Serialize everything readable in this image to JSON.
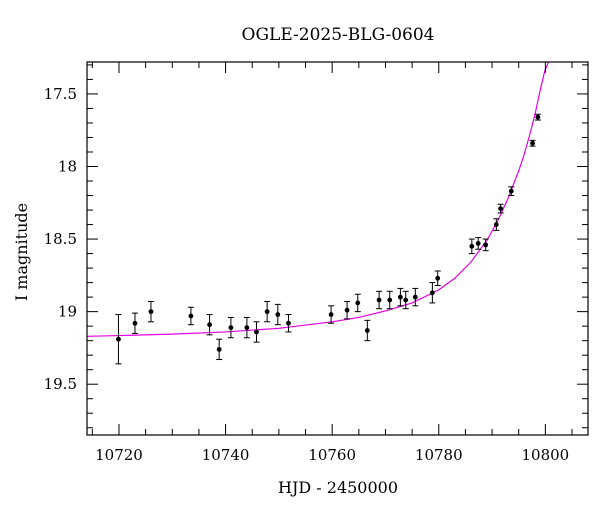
{
  "chart_data": {
    "type": "scatter",
    "title": "OGLE-2025-BLG-0604",
    "xlabel": "HJD - 2450000",
    "ylabel": "I magnitude",
    "xlim": [
      10714,
      10808
    ],
    "ylim": [
      19.85,
      17.28
    ],
    "y_inverted": true,
    "xticks": [
      10720,
      10740,
      10760,
      10780,
      10800
    ],
    "yticks": [
      17.5,
      18,
      18.5,
      19,
      19.5
    ],
    "ytick_labels": [
      "17.5",
      "18",
      "18.5",
      "19",
      "19.5"
    ],
    "grid": false,
    "legend": "none",
    "colors": {
      "points": "#000000",
      "model": "#e600e6"
    },
    "series": [
      {
        "type": "scatter_errorbar",
        "x": [
          10719.9,
          10723.0,
          10726.0,
          10733.5,
          10737.0,
          10738.8,
          10741.0,
          10744.0,
          10745.8,
          10747.8,
          10749.8,
          10751.8,
          10759.8,
          10762.8,
          10764.8,
          10766.6,
          10768.8,
          10770.8,
          10772.8,
          10773.8,
          10775.6,
          10778.8,
          10779.8,
          10786.2,
          10787.4,
          10788.8,
          10790.8,
          10791.6,
          10793.6,
          10797.6,
          10798.6
        ],
        "y": [
          19.19,
          19.08,
          19.0,
          19.03,
          19.09,
          19.26,
          19.11,
          19.11,
          19.14,
          19.0,
          19.02,
          19.08,
          19.02,
          18.99,
          18.94,
          19.13,
          18.92,
          18.92,
          18.9,
          18.92,
          18.9,
          18.87,
          18.77,
          18.55,
          18.53,
          18.54,
          18.4,
          18.29,
          18.17,
          17.84,
          17.66
        ],
        "err": [
          0.17,
          0.07,
          0.07,
          0.06,
          0.07,
          0.07,
          0.07,
          0.07,
          0.07,
          0.07,
          0.07,
          0.06,
          0.06,
          0.06,
          0.06,
          0.07,
          0.06,
          0.06,
          0.06,
          0.06,
          0.06,
          0.07,
          0.05,
          0.05,
          0.04,
          0.04,
          0.04,
          0.03,
          0.03,
          0.02,
          0.02
        ]
      },
      {
        "type": "line",
        "x": [
          10714,
          10720,
          10730,
          10740,
          10750,
          10760,
          10765,
          10770,
          10775,
          10780,
          10783,
          10786,
          10789,
          10791,
          10793,
          10795,
          10796,
          10797,
          10798,
          10799,
          10799.9,
          10800.6
        ],
        "y": [
          19.17,
          19.165,
          19.155,
          19.14,
          19.115,
          19.07,
          19.04,
          18.995,
          18.94,
          18.85,
          18.77,
          18.66,
          18.51,
          18.38,
          18.22,
          18.03,
          17.92,
          17.79,
          17.65,
          17.48,
          17.34,
          17.28
        ]
      }
    ]
  }
}
